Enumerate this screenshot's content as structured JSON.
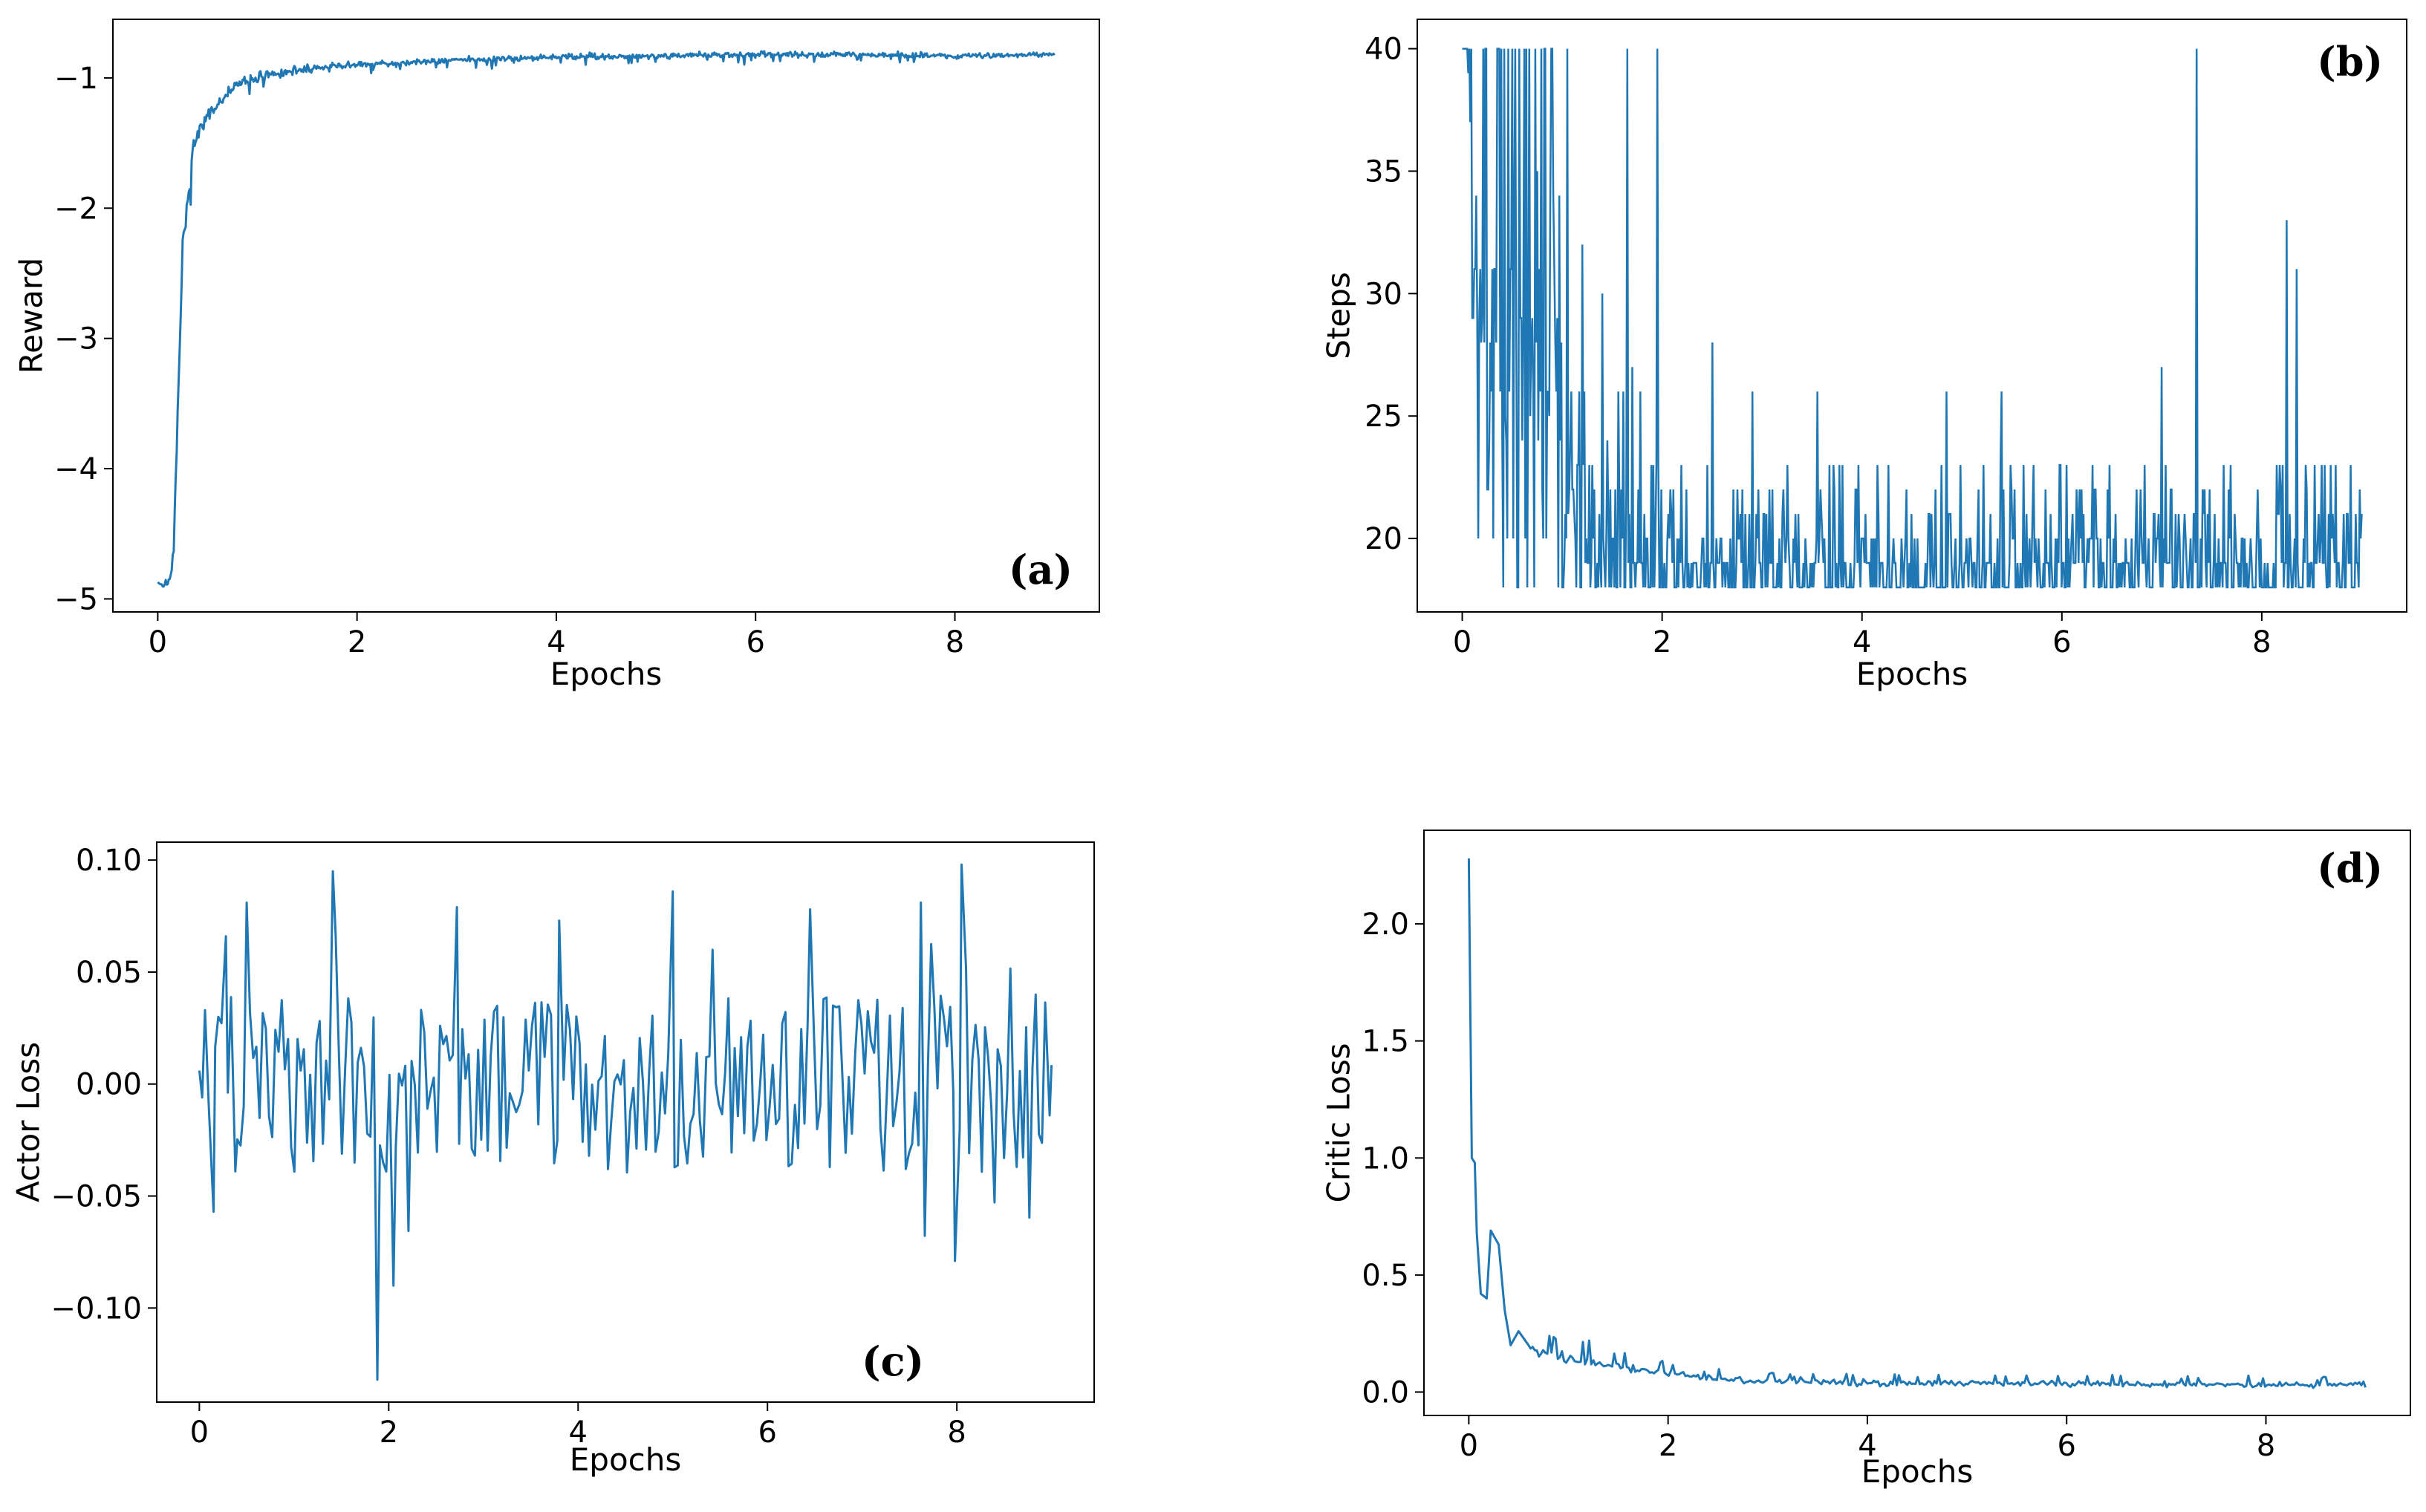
{
  "figure": {
    "line_color": "#1f77b4"
  },
  "chart_data": [
    {
      "id": "a",
      "type": "line",
      "panel_label": "(a)",
      "xlabel": "Epochs",
      "ylabel": "Reward",
      "xlim": [
        -0.45,
        9.45
      ],
      "ylim": [
        -5.1,
        -0.55
      ],
      "xticks": [
        0,
        2,
        4,
        6,
        8
      ],
      "xtick_labels": [
        "0",
        "2",
        "4",
        "6",
        "8"
      ],
      "yticks": [
        -5,
        -4,
        -3,
        -2,
        -1
      ],
      "ytick_labels": [
        "−5",
        "−4",
        "−3",
        "−2",
        "−1"
      ],
      "label_position": "bottom-right",
      "series": [
        {
          "name": "Reward",
          "anchors": [
            [
              0.0,
              -4.87
            ],
            [
              0.06,
              -4.9
            ],
            [
              0.12,
              -4.85
            ],
            [
              0.16,
              -4.65
            ],
            [
              0.2,
              -3.6
            ],
            [
              0.25,
              -2.3
            ],
            [
              0.3,
              -2.0
            ],
            [
              0.35,
              -1.55
            ],
            [
              0.4,
              -1.45
            ],
            [
              0.5,
              -1.3
            ],
            [
              0.6,
              -1.2
            ],
            [
              0.8,
              -1.05
            ],
            [
              1.0,
              -1.0
            ],
            [
              1.5,
              -0.93
            ],
            [
              2.0,
              -0.9
            ],
            [
              3.0,
              -0.86
            ],
            [
              4.0,
              -0.84
            ],
            [
              5.0,
              -0.83
            ],
            [
              6.0,
              -0.82
            ],
            [
              7.0,
              -0.82
            ],
            [
              8.0,
              -0.83
            ],
            [
              9.0,
              -0.82
            ]
          ],
          "noise": [
            [
              0.0,
              0.01
            ],
            [
              0.3,
              0.08
            ],
            [
              0.6,
              0.05
            ],
            [
              1.0,
              0.04
            ],
            [
              2.0,
              0.025
            ],
            [
              9.0,
              0.02
            ]
          ],
          "n_points": 900,
          "seed": 7
        }
      ]
    },
    {
      "id": "b",
      "type": "line",
      "panel_label": "(b)",
      "xlabel": "Epochs",
      "ylabel": "Steps",
      "xlim": [
        -0.45,
        9.45
      ],
      "ylim": [
        17.0,
        41.2
      ],
      "xticks": [
        0,
        2,
        4,
        6,
        8
      ],
      "xtick_labels": [
        "0",
        "2",
        "4",
        "6",
        "8"
      ],
      "yticks": [
        20,
        25,
        30,
        35,
        40
      ],
      "ytick_labels": [
        "20",
        "25",
        "30",
        "35",
        "40"
      ],
      "label_position": "top-right",
      "series": [
        {
          "name": "Steps",
          "levels": [
            18,
            18,
            18,
            18,
            18,
            19,
            19,
            19,
            20,
            20,
            21,
            22,
            23,
            18,
            19
          ],
          "early_levels": [
            18,
            20,
            22,
            24,
            26,
            28,
            29,
            31,
            40,
            40,
            40,
            34,
            25
          ],
          "early_end": 1.0,
          "start_values": [
            40,
            40,
            40,
            40,
            40,
            40,
            39,
            40,
            37,
            40
          ],
          "spikes": [
            [
              0.5,
              40
            ],
            [
              0.62,
              40
            ],
            [
              0.75,
              35
            ],
            [
              0.9,
              40
            ],
            [
              1.05,
              40
            ],
            [
              1.2,
              32
            ],
            [
              1.4,
              30
            ],
            [
              1.65,
              40
            ],
            [
              1.7,
              27
            ],
            [
              1.95,
              40
            ],
            [
              2.5,
              28
            ],
            [
              2.9,
              26
            ],
            [
              3.55,
              26
            ],
            [
              3.8,
              23
            ],
            [
              4.85,
              26
            ],
            [
              5.4,
              26
            ],
            [
              6.15,
              22
            ],
            [
              7.0,
              27
            ],
            [
              7.35,
              40
            ],
            [
              8.25,
              33
            ],
            [
              8.35,
              31
            ],
            [
              8.45,
              22
            ],
            [
              9.0,
              21
            ]
          ],
          "n_points": 900,
          "seed": 11
        }
      ]
    },
    {
      "id": "c",
      "type": "line",
      "panel_label": "(c)",
      "xlabel": "Epochs",
      "ylabel": "Actor Loss",
      "xlim": [
        -0.45,
        9.45
      ],
      "ylim": [
        -0.142,
        0.108
      ],
      "xticks": [
        0,
        2,
        4,
        6,
        8
      ],
      "xtick_labels": [
        "0",
        "2",
        "4",
        "6",
        "8"
      ],
      "yticks": [
        -0.1,
        -0.05,
        0.0,
        0.05,
        0.1
      ],
      "ytick_labels": [
        "−0.10",
        "−0.05",
        "0.00",
        "0.05",
        "0.10"
      ],
      "label_position": "bottom-right",
      "series": [
        {
          "name": "Actor Loss",
          "fixed": [
            [
              0.0,
              0.006
            ],
            [
              0.03,
              -0.006
            ],
            [
              0.06,
              0.033
            ],
            [
              0.1,
              -0.01
            ],
            [
              0.15,
              -0.057
            ],
            [
              0.2,
              0.03
            ],
            [
              0.28,
              0.066
            ],
            [
              0.38,
              -0.039
            ],
            [
              0.5,
              0.081
            ],
            [
              1.41,
              0.095
            ],
            [
              1.88,
              -0.132
            ],
            [
              2.05,
              -0.09
            ],
            [
              2.72,
              0.079
            ],
            [
              3.8,
              0.073
            ],
            [
              5.0,
              0.086
            ],
            [
              6.45,
              0.078
            ],
            [
              7.62,
              0.081
            ],
            [
              7.98,
              -0.079
            ],
            [
              8.05,
              0.098
            ],
            [
              8.98,
              -0.014
            ]
          ],
          "amplitude": 0.04,
          "n_points": 270,
          "seed": 23
        }
      ]
    },
    {
      "id": "d",
      "type": "line",
      "panel_label": "(d)",
      "xlabel": "Epochs",
      "ylabel": "Critic Loss",
      "xlim": [
        -0.45,
        9.45
      ],
      "ylim": [
        -0.1,
        2.4
      ],
      "xticks": [
        0,
        2,
        4,
        6,
        8
      ],
      "xtick_labels": [
        "0",
        "2",
        "4",
        "6",
        "8"
      ],
      "yticks": [
        0.0,
        0.5,
        1.0,
        1.5,
        2.0
      ],
      "ytick_labels": [
        "0.0",
        "0.5",
        "1.0",
        "1.5",
        "2.0"
      ],
      "label_position": "top-right",
      "series": [
        {
          "name": "Critic Loss",
          "fixed": [
            [
              0.0,
              2.28
            ],
            [
              0.03,
              1.0
            ],
            [
              0.06,
              0.98
            ],
            [
              0.08,
              0.68
            ],
            [
              0.12,
              0.42
            ],
            [
              0.18,
              0.4
            ],
            [
              0.22,
              0.69
            ],
            [
              0.3,
              0.63
            ],
            [
              0.36,
              0.35
            ],
            [
              0.42,
              0.2
            ],
            [
              0.5,
              0.26
            ],
            [
              0.6,
              0.2
            ],
            [
              1.2,
              0.22
            ],
            [
              9.0,
              0.02
            ]
          ],
          "anchors": [
            [
              0.6,
              0.18
            ],
            [
              1.0,
              0.14
            ],
            [
              1.5,
              0.11
            ],
            [
              2.0,
              0.08
            ],
            [
              2.5,
              0.055
            ],
            [
              3.0,
              0.045
            ],
            [
              4.0,
              0.04
            ],
            [
              6.0,
              0.035
            ],
            [
              9.0,
              0.03
            ]
          ],
          "noise": [
            [
              0.6,
              0.05
            ],
            [
              1.5,
              0.035
            ],
            [
              2.5,
              0.022
            ],
            [
              9.0,
              0.018
            ]
          ],
          "n_points": 400,
          "seed": 5
        }
      ]
    }
  ]
}
